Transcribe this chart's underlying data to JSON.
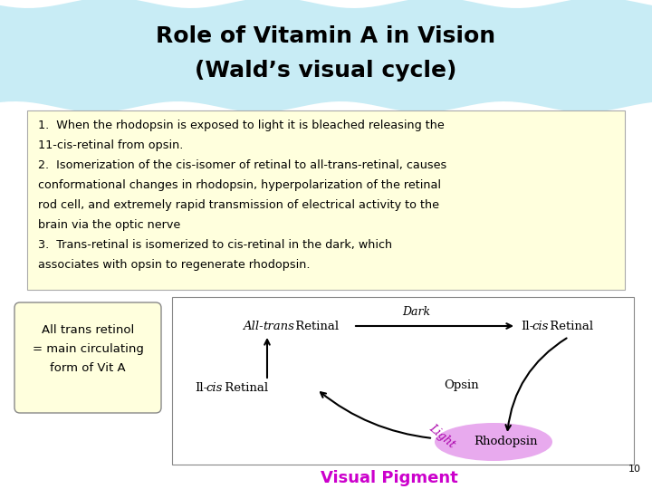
{
  "title_line1": "Role of Vitamin A in Vision",
  "title_line2": "(Wald’s visual cycle)",
  "title_bg_color": "#c8ecf5",
  "title_font_size": 18,
  "body_bg_color": "#ffffdd",
  "body_text_lines": [
    "1.  When the rhodopsin is exposed to light it is bleached releasing the",
    "11-cis-retinal from opsin.",
    "2.  Isomerization of the cis-isomer of retinal to all-trans-retinal, causes",
    "conformational changes in rhodopsin, hyperpolarization of the retinal",
    "rod cell, and extremely rapid transmission of electrical activity to the",
    "brain via the optic nerve",
    "3.  Trans-retinal is isomerized to cis-retinal in the dark, which",
    "associates with opsin to regenerate rhodopsin."
  ],
  "sidebar_text": [
    "All trans retinol",
    "= main circulating",
    "form of Vit A"
  ],
  "sidebar_bg": "#ffffdd",
  "visual_pigment_text": "Visual Pigment",
  "visual_pigment_color": "#cc00cc",
  "page_number": "10",
  "bg_color": "#ffffff"
}
